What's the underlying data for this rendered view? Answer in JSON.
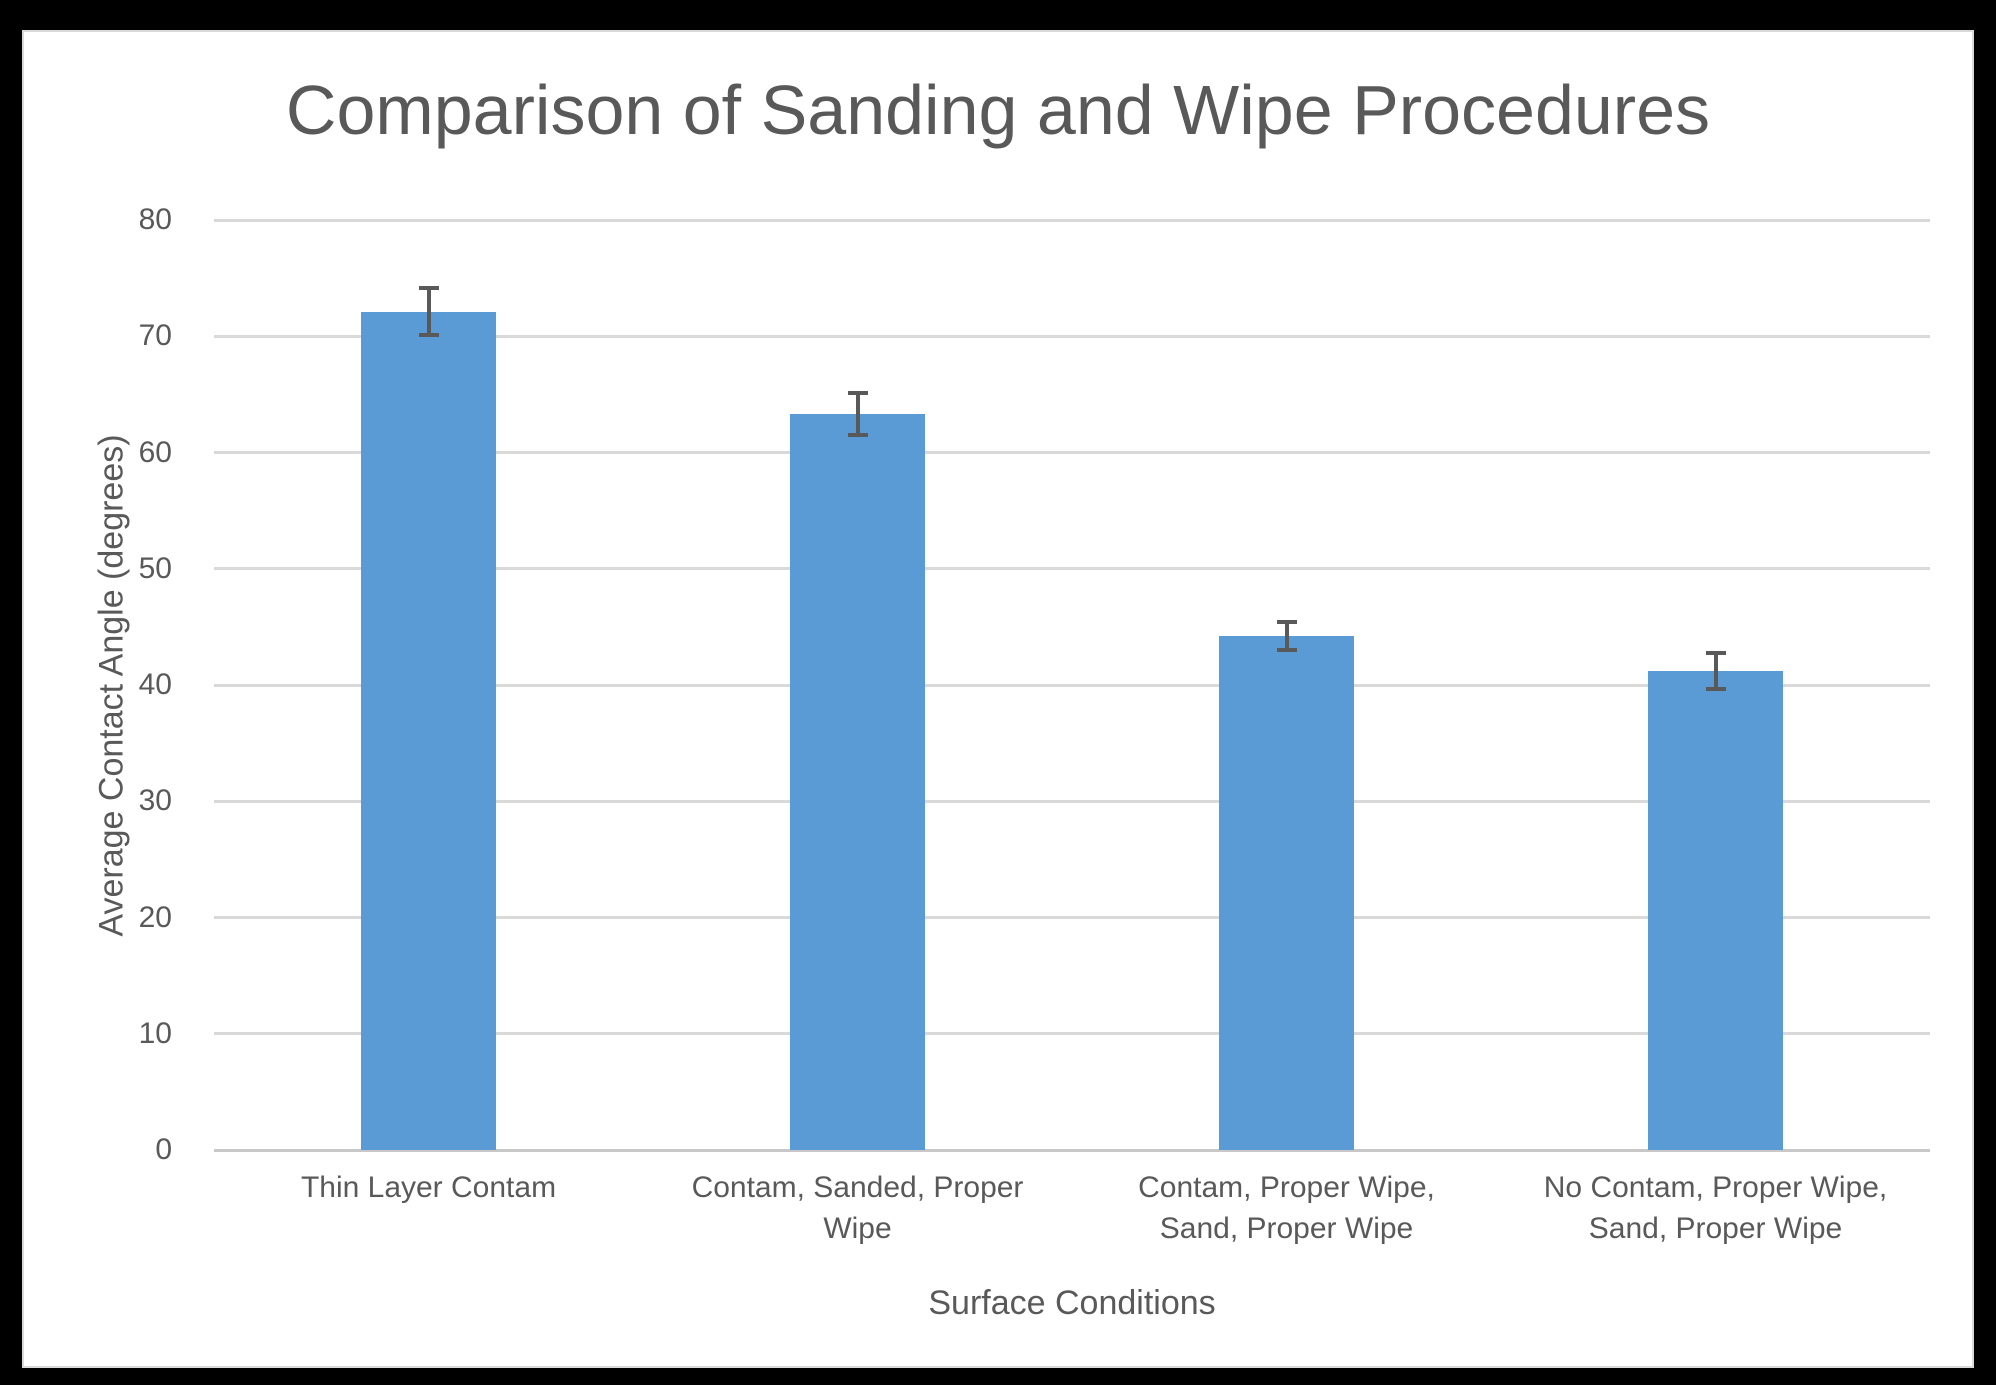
{
  "frame": {
    "background_color": "#000000",
    "card_background_color": "#FFFFFF",
    "card_border_color": "#D9D9D9"
  },
  "chart_data": {
    "type": "bar",
    "title": "Comparison of Sanding and Wipe Procedures",
    "xlabel": "Surface Conditions",
    "ylabel": "Average Contact Angle (degrees)",
    "categories": [
      "Thin Layer Contam",
      "Contam, Sanded, Proper Wipe",
      "Contam, Proper Wipe, Sand, Proper Wipe",
      "No Contam, Proper Wipe, Sand, Proper Wipe"
    ],
    "category_labels_wrapped": [
      "Thin Layer Contam",
      "Contam, Sanded, Proper\nWipe",
      "Contam, Proper Wipe,\nSand, Proper Wipe",
      "No Contam, Proper Wipe,\nSand, Proper Wipe"
    ],
    "values": [
      72.1,
      63.3,
      44.2,
      41.2
    ],
    "error_bars": [
      2.2,
      2.0,
      1.4,
      1.7
    ],
    "yticks": [
      0,
      10,
      20,
      30,
      40,
      50,
      60,
      70,
      80
    ],
    "ylim": [
      0,
      80
    ],
    "grid": true,
    "legend": false,
    "colors": {
      "bar": "#5B9BD5",
      "gridline": "#D9D9D9",
      "axis_line": "#C8C8C8",
      "text": "#595959",
      "title": "#595959",
      "error_bar": "#595959"
    }
  }
}
